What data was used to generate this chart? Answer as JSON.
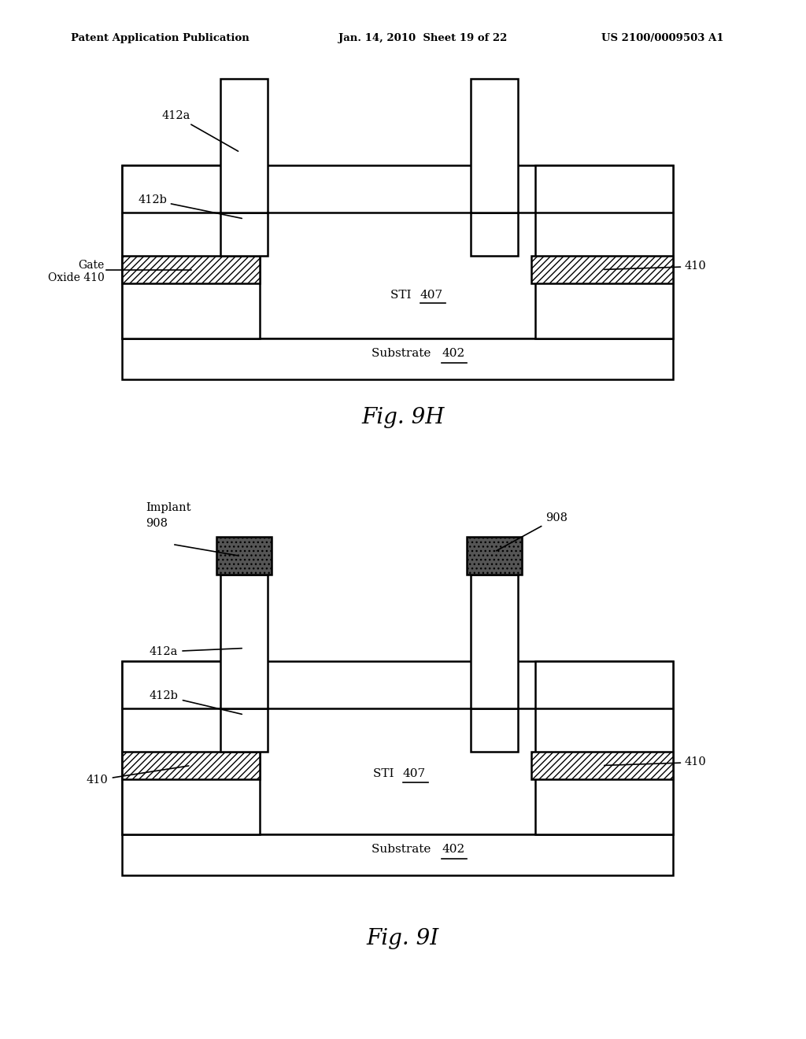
{
  "bg_color": "#ffffff",
  "line_color": "#000000",
  "header_left": "Patent Application Publication",
  "header_mid": "Jan. 14, 2010  Sheet 19 of 22",
  "header_right": "US 2100/0009503 A1",
  "fig9h_label": "Fig. 9H",
  "fig9i_label": "Fig. 9I"
}
